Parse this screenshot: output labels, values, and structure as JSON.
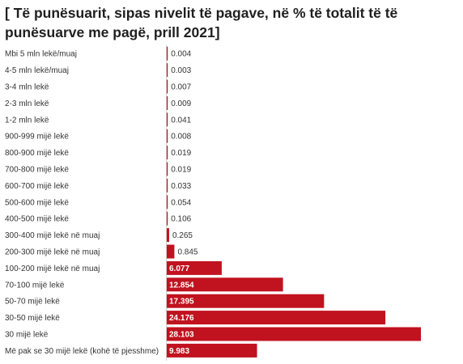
{
  "title": "[ Të punësuarit, sipas nivelit të pagave, në % të totalit të të punësuarve me pagë, prill 2021]",
  "colors": {
    "bar": "#c1121f"
  },
  "chart_data": {
    "type": "bar",
    "orientation": "horizontal",
    "title": "[ Të punësuarit, sipas nivelit të pagave, në % të totalit të të punësuarve me pagë, prill 2021]",
    "categories": [
      "Mbi 5 mln lekë/muaj",
      "4-5 mln lekë/muaj",
      "3-4 mln lekë",
      "2-3 mln lekë",
      "1-2 mln lekë",
      "900-999 mijë lekë",
      "800-900 mijë lekë",
      "700-800 mijë lekë",
      "600-700 mijë lekë",
      "500-600 mijë lekë",
      "400-500 mijë lekë",
      "300-400 mijë lekë në muaj",
      "200-300 mijë lekë në muaj",
      "100-200 mijë lekë në muaj",
      "70-100 mijë lekë",
      "50-70 mijë lekë",
      "30-50 mijë lekë",
      "30 mijë lekë",
      "Më pak se 30 mijë lekë (kohë të pjesshme)"
    ],
    "values": [
      0.004,
      0.003,
      0.007,
      0.009,
      0.041,
      0.008,
      0.019,
      0.019,
      0.033,
      0.054,
      0.106,
      0.265,
      0.845,
      6.077,
      12.854,
      17.395,
      24.176,
      28.103,
      9.983
    ],
    "labels": [
      "0.004",
      "0.003",
      "0.007",
      "0.009",
      "0.041",
      "0.008",
      "0.019",
      "0.019",
      "0.033",
      "0.054",
      "0.106",
      "0.265",
      "0.845",
      "6.077",
      "12.854",
      "17.395",
      "24.176",
      "28.103",
      "9.983"
    ],
    "xlabel": "",
    "ylabel": "",
    "xlim": [
      0,
      28.103
    ],
    "grid": false,
    "legend": "none"
  }
}
